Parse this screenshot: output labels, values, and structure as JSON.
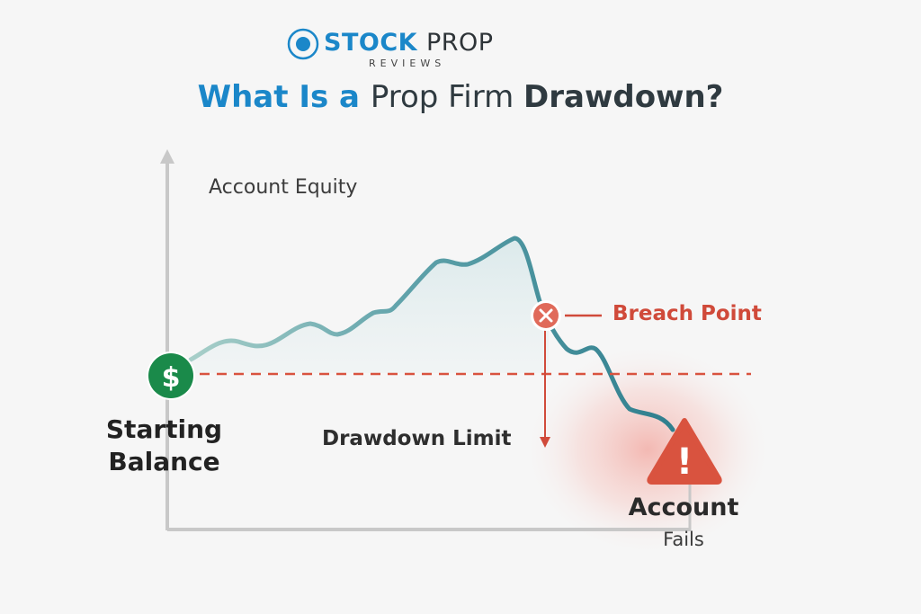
{
  "brand": {
    "name_part1": "STOCK",
    "name_part2": "PROP",
    "subtitle": "REVIEWS"
  },
  "headline": {
    "part1": "What Is a ",
    "part2": "Prop Firm ",
    "part3": "Drawdown",
    "part4": "?"
  },
  "diagram": {
    "y_axis_label": "Account Equity",
    "start_label": "Starting Balance",
    "start_icon": "$",
    "limit_label": "Drawdown Limit",
    "breach_label": "Breach Point",
    "fail_title": "Account",
    "fail_subtitle": "Fails",
    "fail_icon": "!"
  },
  "colors": {
    "brand_blue": "#1b87c9",
    "heading_dark": "#2f3a40",
    "equity_line": "#3b8a96",
    "limit_red": "#d9533f",
    "start_green": "#1a8a4a",
    "axis_gray": "#c8c8c8"
  }
}
